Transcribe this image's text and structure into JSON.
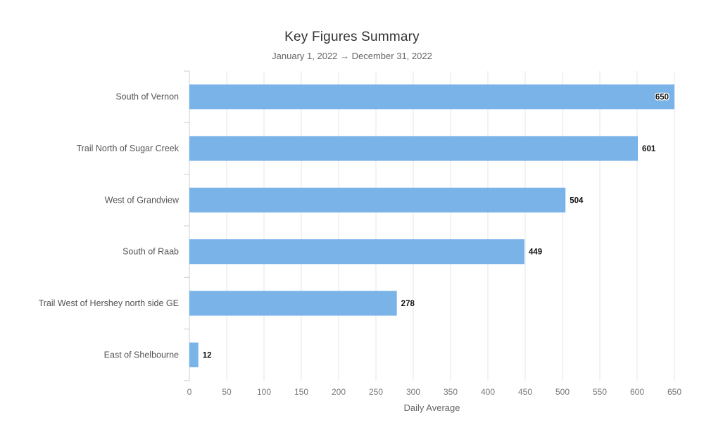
{
  "chart_data": {
    "type": "bar",
    "orientation": "horizontal",
    "title": "Key Figures Summary",
    "subtitle": "January 1, 2022 → December 31, 2022",
    "xlabel": "Daily Average",
    "ylabel": "",
    "categories": [
      "South of Vernon",
      "Trail North of Sugar Creek",
      "West of Grandview",
      "South of Raab",
      "Trail West of Hershey north side GE",
      "East of Shelbourne"
    ],
    "values": [
      650,
      601,
      504,
      449,
      278,
      12
    ],
    "data_labels": [
      "650",
      "601",
      "504",
      "449",
      "278",
      "12"
    ],
    "xlim": [
      0,
      650
    ],
    "xticks": [
      0,
      50,
      100,
      150,
      200,
      250,
      300,
      350,
      400,
      450,
      500,
      550,
      600,
      650
    ],
    "grid": true,
    "bar_color": "#7ab3e8",
    "grid_color": "#e3e6ea"
  }
}
